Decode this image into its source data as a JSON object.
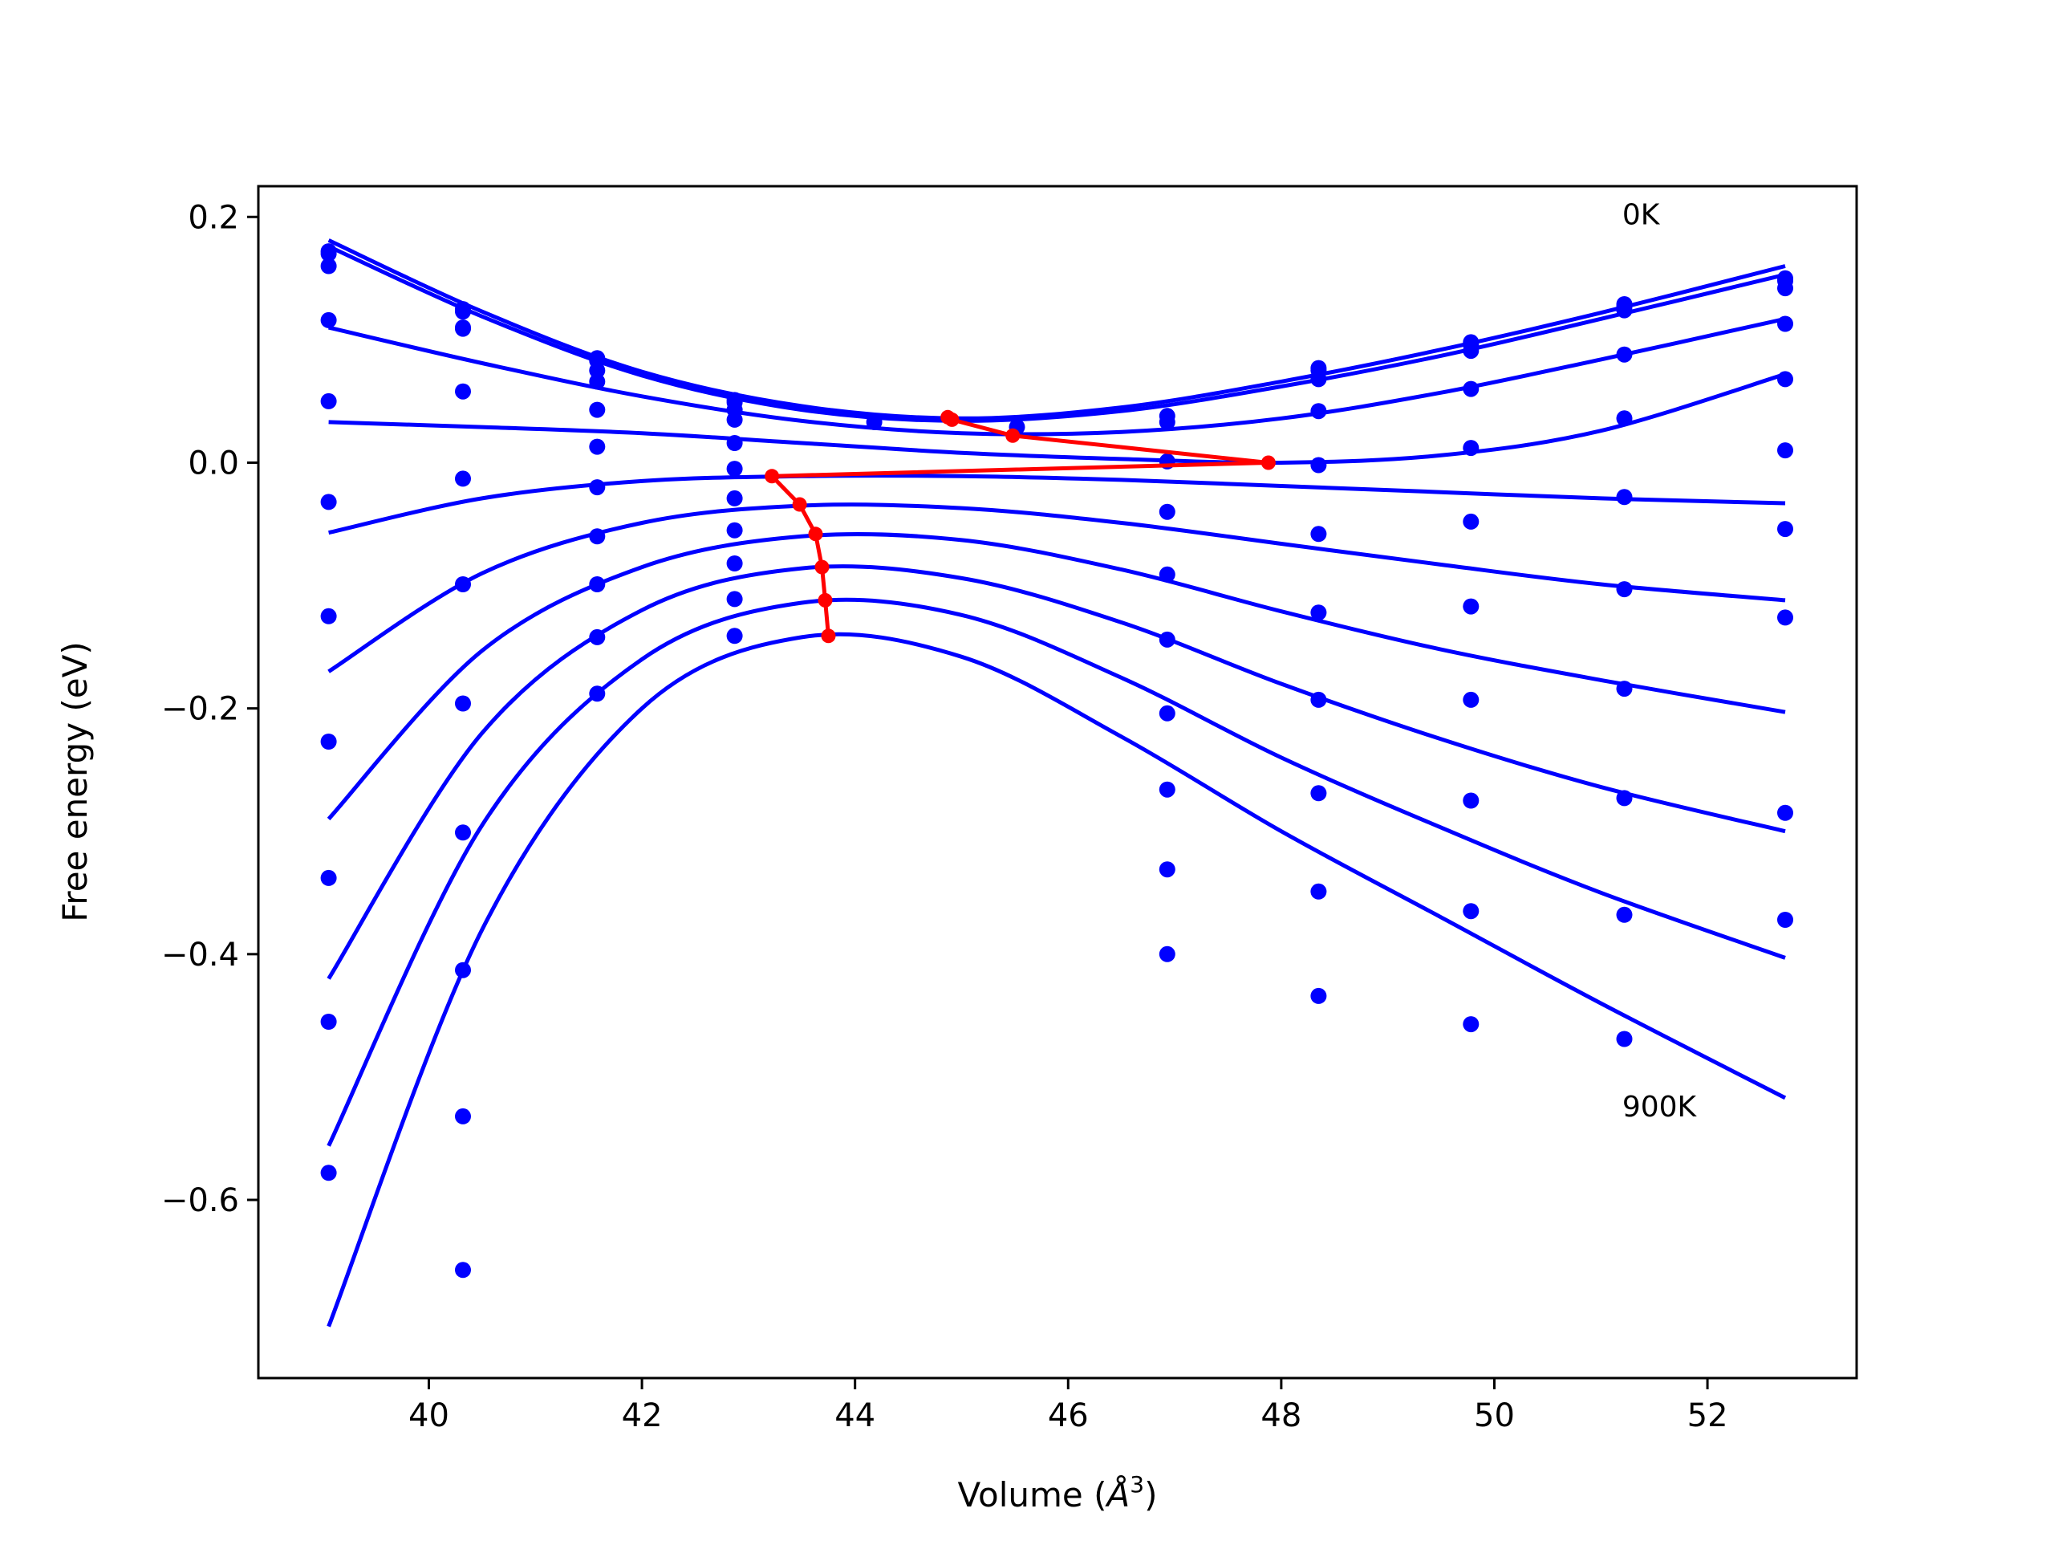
{
  "chart_data": {
    "type": "line",
    "xlabel_text": "Volume (",
    "xlabel_unit": "Å",
    "xlabel_exp": "3",
    "xlabel_close": ")",
    "ylabel": "Free energy (eV)",
    "xlim": [
      38.4,
      53.4
    ],
    "ylim": [
      -0.745,
      0.225
    ],
    "xticks": [
      40,
      42,
      44,
      46,
      48,
      50,
      52
    ],
    "yticks": [
      -0.6,
      -0.4,
      -0.2,
      0.0,
      0.2
    ],
    "ytick_labels": [
      "−0.6",
      "−0.4",
      "−0.2",
      "0.0",
      "0.2"
    ],
    "annotations": [
      {
        "text": "0K",
        "x": 51.2,
        "y": 0.203
      },
      {
        "text": "900K",
        "x": 51.2,
        "y": -0.523
      }
    ],
    "colors": {
      "fits": "#0000ff",
      "points": "#0000ff",
      "minimum": "#ff0000"
    },
    "volumes": [
      39.06,
      40.32,
      41.58,
      42.87,
      44.18,
      45.52,
      46.93,
      48.35,
      49.78,
      51.22,
      52.73
    ],
    "point_series": [
      [
        0.172,
        0.125,
        0.085,
        0.051,
        null,
        null,
        null,
        0.077,
        0.098,
        0.129,
        0.15
      ],
      [
        0.17,
        0.123,
        0.083,
        0.049,
        null,
        null,
        null,
        0.075,
        0.096,
        0.127,
        0.148
      ],
      [
        0.16,
        0.11,
        0.075,
        0.043,
        0.033,
        0.029,
        0.038,
        0.068,
        0.091,
        0.124,
        0.142
      ],
      [
        0.116,
        0.109,
        0.066,
        0.035,
        null,
        null,
        0.033,
        0.042,
        0.06,
        0.088,
        0.113
      ],
      [
        0.05,
        0.058,
        0.043,
        0.016,
        null,
        null,
        0.001,
        -0.002,
        0.012,
        0.036,
        0.068
      ],
      [
        -0.032,
        -0.013,
        0.013,
        -0.005,
        null,
        null,
        -0.04,
        -0.058,
        -0.048,
        -0.028,
        0.01
      ],
      [
        -0.125,
        -0.099,
        -0.02,
        -0.029,
        null,
        null,
        -0.091,
        -0.122,
        -0.117,
        -0.103,
        -0.054
      ],
      [
        -0.227,
        -0.196,
        -0.06,
        -0.055,
        null,
        null,
        -0.144,
        -0.193,
        -0.193,
        -0.184,
        -0.126
      ],
      [
        -0.338,
        -0.301,
        -0.099,
        -0.082,
        null,
        null,
        -0.204,
        -0.269,
        -0.275,
        -0.273,
        -0.285
      ],
      [
        -0.455,
        -0.413,
        -0.142,
        -0.111,
        null,
        null,
        -0.266,
        -0.349,
        -0.365,
        -0.368,
        -0.372
      ],
      [
        -0.578,
        -0.532,
        -0.188,
        -0.141,
        null,
        null,
        -0.331,
        -0.434,
        -0.457,
        -0.469,
        null
      ],
      [
        null,
        -0.657,
        null,
        null,
        null,
        null,
        -0.4,
        null,
        null,
        null,
        null
      ]
    ],
    "fit_curves": [
      {
        "x": [
          39.06,
          40.5,
          42.0,
          43.5,
          45.0,
          46.5,
          48.0,
          49.5,
          51.0,
          52.73
        ],
        "y": [
          0.181,
          0.123,
          0.074,
          0.046,
          0.036,
          0.045,
          0.066,
          0.092,
          0.122,
          0.16
        ]
      },
      {
        "x": [
          39.06,
          40.5,
          42.0,
          43.5,
          45.0,
          46.5,
          48.0,
          49.5,
          51.0,
          52.73
        ],
        "y": [
          0.176,
          0.119,
          0.071,
          0.043,
          0.034,
          0.042,
          0.062,
          0.087,
          0.117,
          0.153
        ]
      },
      {
        "x": [
          39.06,
          40.5,
          42.0,
          43.5,
          45.0,
          46.5,
          48.0,
          49.5,
          51.0,
          52.73
        ],
        "y": [
          0.11,
          0.081,
          0.054,
          0.034,
          0.024,
          0.025,
          0.036,
          0.057,
          0.084,
          0.117
        ]
      },
      {
        "x": [
          39.06,
          40.5,
          42.0,
          43.5,
          45.0,
          46.5,
          48.0,
          49.5,
          51.0,
          52.73
        ],
        "y": [
          0.033,
          0.029,
          0.024,
          0.016,
          0.008,
          0.003,
          0.0,
          0.006,
          0.026,
          0.072
        ]
      },
      {
        "x": [
          39.06,
          40.5,
          42.0,
          43.5,
          45.0,
          46.5,
          48.0,
          49.5,
          51.0,
          52.73
        ],
        "y": [
          -0.057,
          -0.029,
          -0.015,
          -0.011,
          -0.011,
          -0.014,
          -0.019,
          -0.024,
          -0.029,
          -0.033
        ]
      },
      {
        "x": [
          39.06,
          40.5,
          42.0,
          43.5,
          45.0,
          46.5,
          48.0,
          49.5,
          51.0,
          52.73
        ],
        "y": [
          -0.17,
          -0.09,
          -0.049,
          -0.035,
          -0.037,
          -0.049,
          -0.066,
          -0.083,
          -0.099,
          -0.112
        ]
      },
      {
        "x": [
          39.06,
          40.5,
          42.0,
          43.5,
          45.0,
          46.5,
          48.0,
          49.5,
          51.0,
          52.73
        ],
        "y": [
          -0.29,
          -0.153,
          -0.085,
          -0.06,
          -0.063,
          -0.087,
          -0.121,
          -0.152,
          -0.177,
          -0.203
        ]
      },
      {
        "x": [
          39.06,
          40.5,
          42.0,
          43.5,
          45.0,
          46.5,
          48.0,
          49.5,
          51.0,
          52.73
        ],
        "y": [
          -0.42,
          -0.22,
          -0.12,
          -0.086,
          -0.094,
          -0.13,
          -0.18,
          -0.225,
          -0.264,
          -0.3
        ]
      },
      {
        "x": [
          39.06,
          40.5,
          42.0,
          43.5,
          45.0,
          46.5,
          48.0,
          49.5,
          51.0,
          52.73
        ],
        "y": [
          -0.556,
          -0.295,
          -0.16,
          -0.114,
          -0.124,
          -0.175,
          -0.24,
          -0.297,
          -0.35,
          -0.403
        ]
      },
      {
        "x": [
          39.06,
          40.5,
          42.0,
          43.5,
          45.0,
          46.5,
          48.0,
          49.5,
          51.0,
          52.73
        ],
        "y": [
          -0.703,
          -0.38,
          -0.2,
          -0.142,
          -0.158,
          -0.223,
          -0.3,
          -0.37,
          -0.44,
          -0.517
        ]
      }
    ],
    "minimum_line": {
      "x": [
        44.87,
        44.91,
        45.48,
        47.88,
        43.22,
        43.48,
        43.63,
        43.69,
        43.72,
        43.75
      ],
      "y": [
        0.037,
        0.035,
        0.022,
        0.0,
        -0.011,
        -0.034,
        -0.058,
        -0.085,
        -0.112,
        -0.141
      ]
    }
  }
}
